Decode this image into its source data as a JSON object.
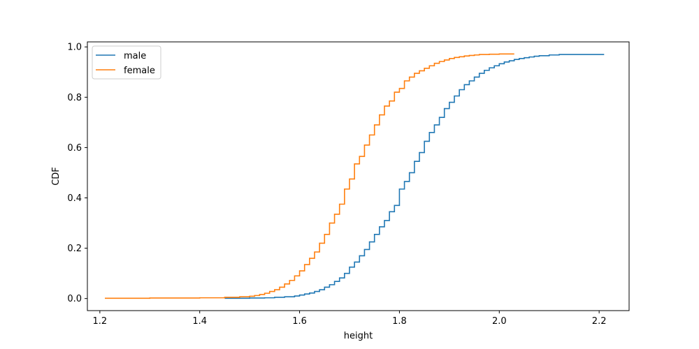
{
  "chart_data": {
    "type": "line",
    "title": "",
    "xlabel": "height",
    "ylabel": "CDF",
    "xlim": [
      1.175,
      2.26
    ],
    "ylim": [
      -0.048,
      1.02
    ],
    "xticks": [
      "1.2",
      "1.4",
      "1.6",
      "1.8",
      "2.0",
      "2.2"
    ],
    "yticks": [
      "0.0",
      "0.2",
      "0.4",
      "0.6",
      "0.8",
      "1.0"
    ],
    "grid": false,
    "legend_position": "top-left",
    "series": [
      {
        "name": "male",
        "color": "#1f77b4",
        "x": [
          1.45,
          1.5,
          1.53,
          1.55,
          1.57,
          1.59,
          1.6,
          1.61,
          1.62,
          1.63,
          1.64,
          1.65,
          1.66,
          1.67,
          1.68,
          1.69,
          1.7,
          1.71,
          1.72,
          1.73,
          1.74,
          1.75,
          1.76,
          1.77,
          1.78,
          1.79,
          1.8,
          1.81,
          1.82,
          1.83,
          1.84,
          1.85,
          1.86,
          1.87,
          1.88,
          1.89,
          1.9,
          1.91,
          1.92,
          1.93,
          1.94,
          1.95,
          1.96,
          1.97,
          1.98,
          1.99,
          2.0,
          2.01,
          2.02,
          2.03,
          2.04,
          2.05,
          2.06,
          2.07,
          2.08,
          2.1,
          2.12,
          2.21
        ],
        "y": [
          0.001,
          0.002,
          0.003,
          0.005,
          0.007,
          0.01,
          0.014,
          0.018,
          0.022,
          0.028,
          0.035,
          0.045,
          0.055,
          0.068,
          0.082,
          0.1,
          0.125,
          0.145,
          0.17,
          0.195,
          0.225,
          0.255,
          0.285,
          0.31,
          0.345,
          0.37,
          0.435,
          0.465,
          0.5,
          0.545,
          0.58,
          0.625,
          0.66,
          0.69,
          0.72,
          0.755,
          0.78,
          0.805,
          0.83,
          0.85,
          0.865,
          0.88,
          0.895,
          0.907,
          0.917,
          0.925,
          0.933,
          0.94,
          0.945,
          0.95,
          0.954,
          0.957,
          0.96,
          0.963,
          0.965,
          0.968,
          0.97,
          0.97
        ]
      },
      {
        "name": "female",
        "color": "#ff7f0e",
        "x": [
          1.21,
          1.3,
          1.4,
          1.45,
          1.48,
          1.5,
          1.51,
          1.52,
          1.53,
          1.54,
          1.55,
          1.56,
          1.57,
          1.58,
          1.59,
          1.6,
          1.61,
          1.62,
          1.63,
          1.64,
          1.65,
          1.66,
          1.67,
          1.68,
          1.69,
          1.7,
          1.71,
          1.72,
          1.73,
          1.74,
          1.75,
          1.76,
          1.77,
          1.78,
          1.79,
          1.8,
          1.81,
          1.82,
          1.83,
          1.84,
          1.85,
          1.86,
          1.87,
          1.88,
          1.89,
          1.9,
          1.91,
          1.92,
          1.93,
          1.94,
          1.95,
          1.96,
          1.98,
          2.0,
          2.03
        ],
        "y": [
          0.001,
          0.002,
          0.003,
          0.005,
          0.007,
          0.009,
          0.012,
          0.016,
          0.021,
          0.028,
          0.035,
          0.045,
          0.058,
          0.072,
          0.09,
          0.11,
          0.135,
          0.16,
          0.185,
          0.22,
          0.255,
          0.3,
          0.335,
          0.375,
          0.435,
          0.475,
          0.535,
          0.565,
          0.61,
          0.65,
          0.69,
          0.73,
          0.765,
          0.785,
          0.82,
          0.835,
          0.865,
          0.88,
          0.895,
          0.905,
          0.915,
          0.925,
          0.935,
          0.942,
          0.948,
          0.954,
          0.958,
          0.961,
          0.964,
          0.966,
          0.968,
          0.97,
          0.971,
          0.972,
          0.972
        ]
      }
    ]
  }
}
